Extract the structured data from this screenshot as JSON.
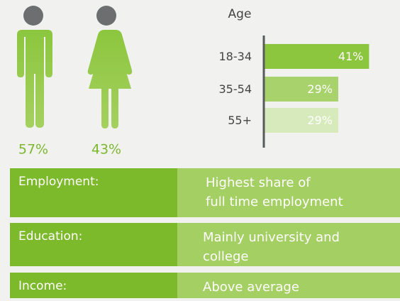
{
  "gender": {
    "values": [
      57,
      43
    ],
    "value_labels": [
      "57%",
      "43%"
    ]
  },
  "chart_data": {
    "type": "bar",
    "orientation": "horizontal",
    "title": "Age",
    "categories": [
      "18-34",
      "35-54",
      "55+"
    ],
    "values": [
      41,
      29,
      29
    ],
    "value_labels": [
      "41%",
      "29%",
      "29%"
    ],
    "colors": [
      "#8cc63e",
      "#a8d36c",
      "#d6eabb"
    ],
    "xlim": [
      0,
      42
    ]
  },
  "profile": {
    "rows": [
      {
        "label": "Employment:",
        "text": [
          "Highest share of",
          "full time employment"
        ]
      },
      {
        "label": "Education:",
        "text": [
          "Mainly university and",
          "college"
        ]
      },
      {
        "label": "Income:",
        "text": [
          "Above average"
        ]
      }
    ]
  }
}
